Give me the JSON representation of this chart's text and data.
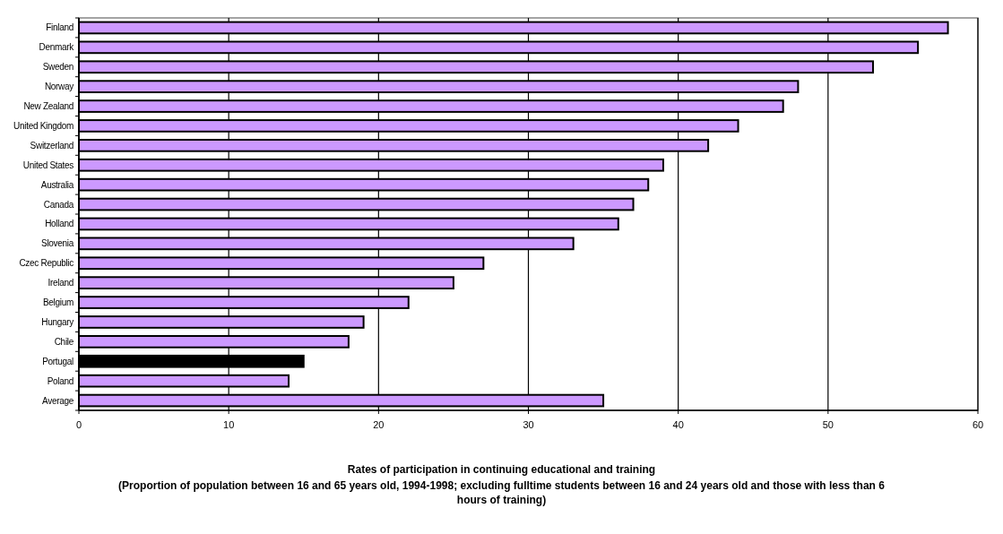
{
  "chart_data": {
    "type": "bar",
    "orientation": "horizontal",
    "title": "Rates of participation in continuing educational and training",
    "subtitle": "(Proportion of population between 16 and 65 years old, 1994-1998; excluding fulltime students between 16 and 24 years old and those with less than 6 hours of training)",
    "categories": [
      "Finland",
      "Denmark",
      "Sweden",
      "Norway",
      "New Zealand",
      "United Kingdom",
      "Switzerland",
      "United States",
      "Australia",
      "Canada",
      "Holland",
      "Slovenia",
      "Czec Republic",
      "Ireland",
      "Belgium",
      "Hungary",
      "Chile",
      "Portugal",
      "Poland",
      "Average"
    ],
    "values": [
      58,
      56,
      53,
      48,
      47,
      44,
      42,
      39,
      38,
      37,
      36,
      33,
      27,
      25,
      22,
      19,
      18,
      15,
      14,
      35
    ],
    "colors": [
      "#cc99ff",
      "#cc99ff",
      "#cc99ff",
      "#cc99ff",
      "#cc99ff",
      "#cc99ff",
      "#cc99ff",
      "#cc99ff",
      "#cc99ff",
      "#cc99ff",
      "#cc99ff",
      "#cc99ff",
      "#cc99ff",
      "#cc99ff",
      "#cc99ff",
      "#cc99ff",
      "#cc99ff",
      "#000000",
      "#cc99ff",
      "#cc99ff"
    ],
    "xlim": [
      0,
      60
    ],
    "xticks": [
      0,
      10,
      20,
      30,
      40,
      50,
      60
    ],
    "grid": "x"
  }
}
